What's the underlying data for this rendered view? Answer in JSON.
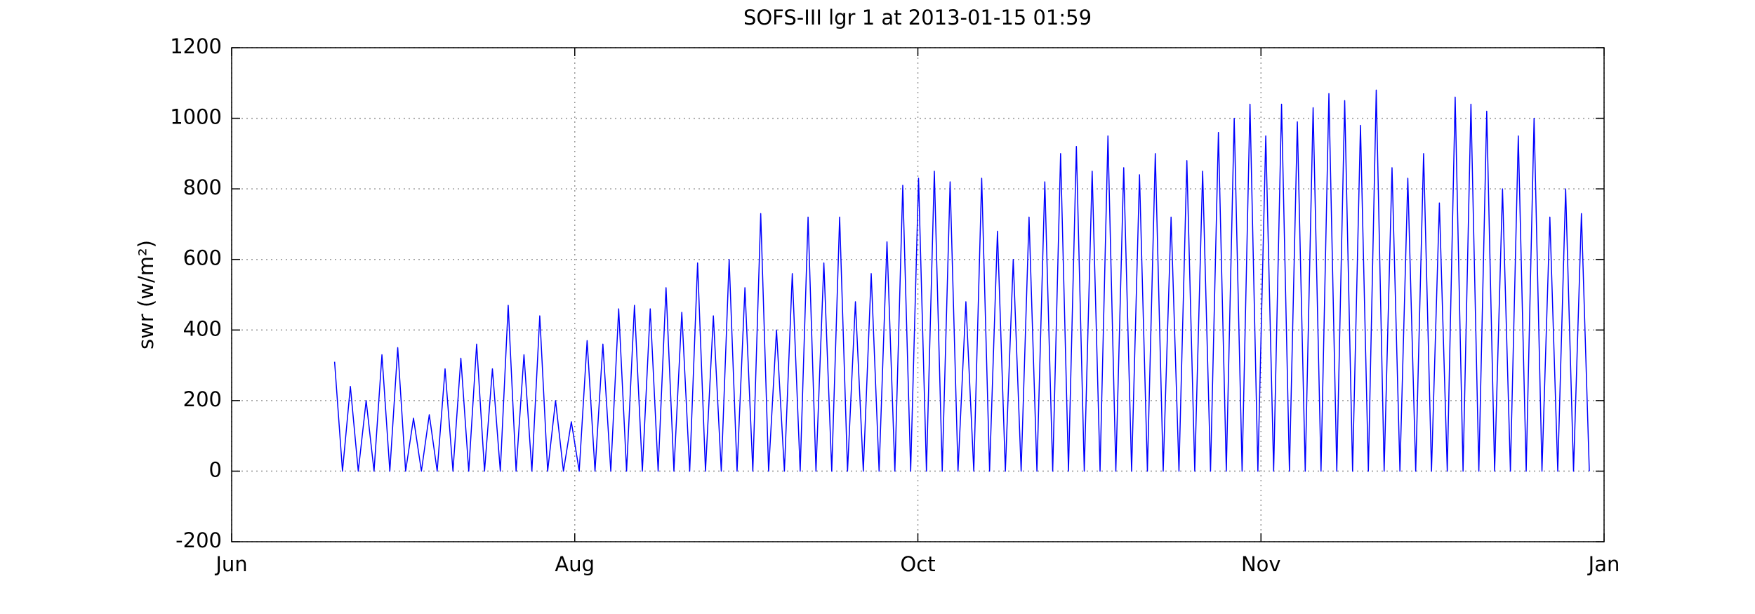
{
  "chart_data": {
    "type": "line",
    "title": "SOFS-III lgr 1 at 2013-01-15 01:59",
    "ylabel": "swr (w/m²)",
    "x": [
      0.3,
      0.323,
      0.346,
      0.369,
      0.392,
      0.415,
      0.438,
      0.461,
      0.484,
      0.507,
      0.53,
      0.553,
      0.576,
      0.599,
      0.622,
      0.645,
      0.668,
      0.691,
      0.714,
      0.737,
      0.76,
      0.783,
      0.806,
      0.829,
      0.852,
      0.875,
      0.898,
      0.921,
      0.944,
      0.967,
      0.99,
      1.013,
      1.036,
      1.059,
      1.082,
      1.105,
      1.128,
      1.151,
      1.174,
      1.197,
      1.22,
      1.243,
      1.266,
      1.289,
      1.312,
      1.335,
      1.358,
      1.381,
      1.404,
      1.427,
      1.45,
      1.473,
      1.496,
      1.519,
      1.542,
      1.565,
      1.588,
      1.611,
      1.634,
      1.657,
      1.68,
      1.703,
      1.726,
      1.749,
      1.772,
      1.795,
      1.818,
      1.841,
      1.864,
      1.887,
      1.91,
      1.933,
      1.956,
      1.979,
      2.002,
      2.025,
      2.048,
      2.071,
      2.094,
      2.117,
      2.14,
      2.163,
      2.186,
      2.209,
      2.232,
      2.255,
      2.278,
      2.301,
      2.324,
      2.347,
      2.37,
      2.393,
      2.416,
      2.439,
      2.462,
      2.485,
      2.508,
      2.531,
      2.554,
      2.577,
      2.6,
      2.623,
      2.646,
      2.669,
      2.692,
      2.715,
      2.738,
      2.761,
      2.784,
      2.807,
      2.83,
      2.853,
      2.876,
      2.899,
      2.922,
      2.945,
      2.968,
      2.991,
      3.014,
      3.037,
      3.06,
      3.083,
      3.106,
      3.129,
      3.152,
      3.175,
      3.198,
      3.221,
      3.244,
      3.267,
      3.29,
      3.313,
      3.336,
      3.359,
      3.382,
      3.405,
      3.428,
      3.451,
      3.474,
      3.497,
      3.52,
      3.543,
      3.566,
      3.589,
      3.612,
      3.635,
      3.658,
      3.681,
      3.704,
      3.727,
      3.75,
      3.773,
      3.796,
      3.819,
      3.842,
      3.865,
      3.888,
      3.911,
      3.934,
      3.957
    ],
    "series": [
      {
        "color": "#0000ff",
        "values": [
          310,
          0,
          240,
          0,
          200,
          0,
          330,
          0,
          350,
          0,
          150,
          0,
          160,
          0,
          290,
          0,
          320,
          0,
          360,
          0,
          290,
          0,
          470,
          0,
          330,
          0,
          440,
          0,
          200,
          0,
          140,
          0,
          370,
          0,
          360,
          0,
          460,
          0,
          470,
          0,
          460,
          0,
          520,
          0,
          450,
          0,
          590,
          0,
          440,
          0,
          600,
          0,
          520,
          0,
          730,
          0,
          400,
          0,
          560,
          0,
          720,
          0,
          590,
          0,
          720,
          0,
          480,
          0,
          560,
          0,
          650,
          0,
          810,
          0,
          830,
          0,
          850,
          0,
          820,
          0,
          480,
          0,
          830,
          0,
          680,
          0,
          600,
          0,
          720,
          0,
          820,
          0,
          900,
          0,
          920,
          0,
          850,
          0,
          950,
          0,
          860,
          0,
          840,
          0,
          900,
          0,
          720,
          0,
          880,
          0,
          850,
          0,
          960,
          0,
          1000,
          0,
          1040,
          0,
          950,
          0,
          1040,
          0,
          990,
          0,
          1030,
          0,
          1070,
          0,
          1050,
          0,
          980,
          0,
          1080,
          0,
          860,
          0,
          830,
          0,
          900,
          0,
          760,
          0,
          1060,
          0,
          1040,
          0,
          1020,
          0,
          800,
          0,
          950,
          0,
          1000,
          0,
          720,
          0,
          800,
          0,
          730,
          0
        ]
      }
    ],
    "xlim": [
      0,
      4
    ],
    "xticks": [
      {
        "value": 0,
        "label": "Jun"
      },
      {
        "value": 1,
        "label": "Aug"
      },
      {
        "value": 2,
        "label": "Oct"
      },
      {
        "value": 3,
        "label": "Nov"
      },
      {
        "value": 4,
        "label": "Jan"
      }
    ],
    "ylim": [
      -200,
      1200
    ],
    "yticks": [
      -200,
      0,
      200,
      400,
      600,
      800,
      1000,
      1200
    ],
    "grid": true
  }
}
